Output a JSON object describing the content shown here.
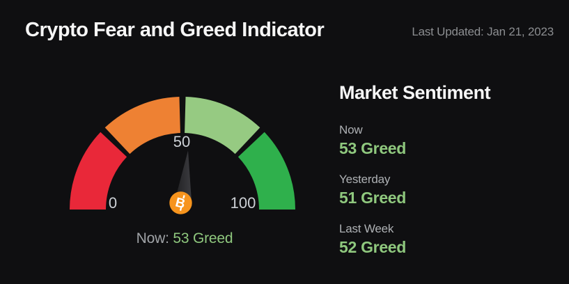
{
  "header": {
    "title": "Crypto Fear and Greed Indicator",
    "last_updated": "Last Updated: Jan 21, 2023"
  },
  "gauge": {
    "caption_label": "Now:",
    "caption_value": "53 Greed",
    "bitcoin_glyph": "B"
  },
  "sentiment": {
    "title": "Market Sentiment",
    "rows": [
      {
        "label": "Now",
        "value": "53 Greed"
      },
      {
        "label": "Yesterday",
        "value": "51 Greed"
      },
      {
        "label": "Last Week",
        "value": "52 Greed"
      }
    ]
  },
  "colors": {
    "background": "#0f0f11",
    "value_text_green": "#8fc87e",
    "bitcoin_orange": "#f7941d",
    "tick_gray": "#ccd0d5",
    "needle_dark": "#2a2a2d"
  },
  "chart_data": {
    "type": "gauge",
    "title": "Crypto Fear and Greed Indicator",
    "min": 0,
    "max": 100,
    "value": 53,
    "value_sentiment": "Greed",
    "segments": [
      {
        "from": 0,
        "to": 25,
        "color": "#e92839"
      },
      {
        "from": 25,
        "to": 50,
        "color": "#ee8133"
      },
      {
        "from": 50,
        "to": 75,
        "color": "#96ca82"
      },
      {
        "from": 75,
        "to": 100,
        "color": "#2fb04c"
      }
    ],
    "tick_labels": [
      "0",
      "50",
      "100"
    ],
    "history": [
      {
        "label": "Now",
        "value": 53,
        "sentiment": "Greed"
      },
      {
        "label": "Yesterday",
        "value": 51,
        "sentiment": "Greed"
      },
      {
        "label": "Last Week",
        "value": 52,
        "sentiment": "Greed"
      }
    ],
    "legend_position": "none",
    "grid": false
  }
}
